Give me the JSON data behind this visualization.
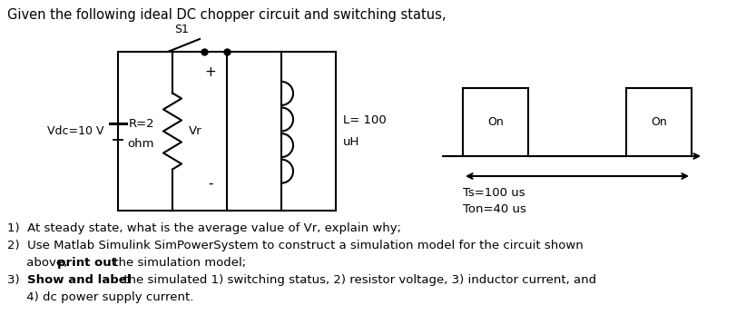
{
  "title": "Given the following ideal DC chopper circuit and switching status,",
  "title_fontsize": 10.5,
  "background_color": "#ffffff",
  "text_color": "#000000",
  "circuit": {
    "vdc_label": "Vdc=10 V",
    "switch_label": "S1",
    "resistor_label": "R=2",
    "resistor_label2": "ohm",
    "vr_label": "Vr",
    "inductor_label": "L= 100",
    "inductor_label2": "uH",
    "plus_label": "+",
    "minus_label": "-"
  },
  "switching": {
    "on_label": "On",
    "ts_label": "Ts=100 us",
    "ton_label": "Ton=40 us"
  },
  "q1": "1)  At steady state, what is the average value of Vr, explain why;",
  "q2a": "2)  Use Matlab Simulink SimPowerSystem to construct a simulation model for the circuit shown",
  "q2b_pre": "     above, ",
  "q2b_bold": "print out",
  "q2b_post": " the simulation model;",
  "q3a_num": "3)  ",
  "q3a_bold": "Show and label",
  "q3a_post": " the simulated 1) switching status, 2) resistor voltage, 3) inductor current, and",
  "q3b": "     4) dc power supply current."
}
